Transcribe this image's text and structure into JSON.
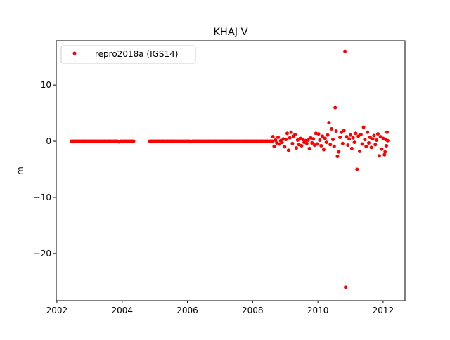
{
  "chart_data": {
    "type": "scatter",
    "title": "KHAJ V",
    "xlabel": "",
    "ylabel": "m",
    "xlim": [
      2001.98,
      2012.67
    ],
    "ylim": [
      -28.4,
      17.9
    ],
    "xticks": [
      2002,
      2004,
      2006,
      2008,
      2010,
      2012
    ],
    "xtick_labels": [
      "2002",
      "2004",
      "2006",
      "2008",
      "2010",
      "2012"
    ],
    "yticks": [
      10,
      0,
      -10,
      -20
    ],
    "ytick_labels": [
      "10",
      "0",
      "−10",
      "−20"
    ],
    "grid": false,
    "legend_placement": "upper-left",
    "series": [
      {
        "name": "repro2018a (IGS14)",
        "color": "#ff0000",
        "marker": "circle",
        "points": [
          [
            2002.45,
            0
          ],
          [
            2002.5,
            0
          ],
          [
            2002.55,
            0
          ],
          [
            2002.6,
            0
          ],
          [
            2002.65,
            0
          ],
          [
            2002.7,
            0
          ],
          [
            2002.75,
            0
          ],
          [
            2002.8,
            0
          ],
          [
            2002.85,
            0
          ],
          [
            2002.9,
            0
          ],
          [
            2002.95,
            0
          ],
          [
            2003.0,
            0
          ],
          [
            2003.05,
            0
          ],
          [
            2003.1,
            0
          ],
          [
            2003.15,
            0
          ],
          [
            2003.2,
            0
          ],
          [
            2003.25,
            0
          ],
          [
            2003.3,
            0
          ],
          [
            2003.35,
            0
          ],
          [
            2003.4,
            0
          ],
          [
            2003.45,
            0
          ],
          [
            2003.5,
            0
          ],
          [
            2003.55,
            0
          ],
          [
            2003.6,
            0
          ],
          [
            2003.65,
            0
          ],
          [
            2003.7,
            0
          ],
          [
            2003.75,
            0
          ],
          [
            2003.8,
            0
          ],
          [
            2003.85,
            0
          ],
          [
            2003.9,
            -0.1
          ],
          [
            2003.95,
            0
          ],
          [
            2004.0,
            0
          ],
          [
            2004.05,
            0
          ],
          [
            2004.1,
            0
          ],
          [
            2004.15,
            0
          ],
          [
            2004.2,
            0
          ],
          [
            2004.25,
            0
          ],
          [
            2004.3,
            0
          ],
          [
            2004.35,
            0
          ],
          [
            2004.85,
            0
          ],
          [
            2004.9,
            0
          ],
          [
            2004.95,
            0
          ],
          [
            2005.0,
            0
          ],
          [
            2005.05,
            0
          ],
          [
            2005.1,
            0
          ],
          [
            2005.15,
            0
          ],
          [
            2005.2,
            0
          ],
          [
            2005.25,
            0
          ],
          [
            2005.3,
            0
          ],
          [
            2005.35,
            0
          ],
          [
            2005.4,
            0
          ],
          [
            2005.45,
            0
          ],
          [
            2005.5,
            0
          ],
          [
            2005.55,
            0
          ],
          [
            2005.6,
            0
          ],
          [
            2005.65,
            0
          ],
          [
            2005.7,
            0
          ],
          [
            2005.75,
            0
          ],
          [
            2005.8,
            0
          ],
          [
            2005.85,
            0
          ],
          [
            2005.9,
            0
          ],
          [
            2005.95,
            0
          ],
          [
            2006.0,
            0
          ],
          [
            2006.05,
            0
          ],
          [
            2006.1,
            -0.1
          ],
          [
            2006.15,
            0
          ],
          [
            2006.2,
            0
          ],
          [
            2006.25,
            0
          ],
          [
            2006.3,
            0
          ],
          [
            2006.35,
            0
          ],
          [
            2006.4,
            0
          ],
          [
            2006.45,
            0
          ],
          [
            2006.5,
            0
          ],
          [
            2006.55,
            0
          ],
          [
            2006.6,
            0
          ],
          [
            2006.65,
            0
          ],
          [
            2006.7,
            0
          ],
          [
            2006.75,
            0
          ],
          [
            2006.8,
            0
          ],
          [
            2006.85,
            0
          ],
          [
            2006.9,
            0
          ],
          [
            2006.95,
            0
          ],
          [
            2007.0,
            0
          ],
          [
            2007.05,
            0
          ],
          [
            2007.1,
            0
          ],
          [
            2007.15,
            0
          ],
          [
            2007.2,
            0
          ],
          [
            2007.25,
            0
          ],
          [
            2007.3,
            0
          ],
          [
            2007.35,
            0
          ],
          [
            2007.4,
            0
          ],
          [
            2007.45,
            0
          ],
          [
            2007.5,
            0
          ],
          [
            2007.55,
            0
          ],
          [
            2007.6,
            0
          ],
          [
            2007.65,
            0
          ],
          [
            2007.7,
            0
          ],
          [
            2007.75,
            0
          ],
          [
            2007.8,
            0
          ],
          [
            2007.85,
            0
          ],
          [
            2007.9,
            0
          ],
          [
            2007.95,
            0
          ],
          [
            2008.0,
            0
          ],
          [
            2008.05,
            0
          ],
          [
            2008.1,
            0
          ],
          [
            2008.15,
            0
          ],
          [
            2008.2,
            0
          ],
          [
            2008.25,
            0
          ],
          [
            2008.3,
            0
          ],
          [
            2008.35,
            0
          ],
          [
            2008.4,
            0
          ],
          [
            2008.45,
            0
          ],
          [
            2008.5,
            0
          ],
          [
            2008.55,
            0
          ],
          [
            2008.6,
            0
          ],
          [
            2008.62,
            0.8
          ],
          [
            2008.66,
            -0.9
          ],
          [
            2008.7,
            0.2
          ],
          [
            2008.74,
            -0.3
          ],
          [
            2008.78,
            0.7
          ],
          [
            2008.82,
            -0.5
          ],
          [
            2008.86,
            0.1
          ],
          [
            2008.9,
            -0.2
          ],
          [
            2008.94,
            0.4
          ],
          [
            2008.98,
            -1.0
          ],
          [
            2009.02,
            0.3
          ],
          [
            2009.06,
            1.4
          ],
          [
            2009.1,
            -1.6
          ],
          [
            2009.14,
            0.6
          ],
          [
            2009.18,
            1.6
          ],
          [
            2009.22,
            -0.4
          ],
          [
            2009.26,
            0.9
          ],
          [
            2009.3,
            1.2
          ],
          [
            2009.34,
            -1.2
          ],
          [
            2009.38,
            0.2
          ],
          [
            2009.42,
            -0.6
          ],
          [
            2009.46,
            0.5
          ],
          [
            2009.5,
            -0.8
          ],
          [
            2009.54,
            0.3
          ],
          [
            2009.58,
            -0.2
          ],
          [
            2009.62,
            0.1
          ],
          [
            2009.66,
            -0.4
          ],
          [
            2009.7,
            0.2
          ],
          [
            2009.74,
            -1.3
          ],
          [
            2009.78,
            0.6
          ],
          [
            2009.82,
            -0.3
          ],
          [
            2009.86,
            0.4
          ],
          [
            2009.9,
            -0.7
          ],
          [
            2009.94,
            1.4
          ],
          [
            2009.98,
            -0.5
          ],
          [
            2010.02,
            1.3
          ],
          [
            2010.06,
            0.2
          ],
          [
            2010.1,
            -0.8
          ],
          [
            2010.14,
            0.9
          ],
          [
            2010.18,
            -1.5
          ],
          [
            2010.22,
            0.5
          ],
          [
            2010.26,
            -0.2
          ],
          [
            2010.3,
            1.1
          ],
          [
            2010.34,
            3.3
          ],
          [
            2010.38,
            -0.6
          ],
          [
            2010.42,
            2.2
          ],
          [
            2010.46,
            0.3
          ],
          [
            2010.5,
            -0.9
          ],
          [
            2010.53,
            6.0
          ],
          [
            2010.56,
            1.8
          ],
          [
            2010.6,
            -2.7
          ],
          [
            2010.64,
            -1.9
          ],
          [
            2010.68,
            0.7
          ],
          [
            2010.72,
            1.6
          ],
          [
            2010.76,
            -0.4
          ],
          [
            2010.8,
            1.9
          ],
          [
            2010.83,
            16.0
          ],
          [
            2010.85,
            -26.0
          ],
          [
            2010.88,
            0.8
          ],
          [
            2010.92,
            -0.7
          ],
          [
            2010.96,
            0.4
          ],
          [
            2011.0,
            1.1
          ],
          [
            2011.04,
            -1.3
          ],
          [
            2011.08,
            0.6
          ],
          [
            2011.12,
            -0.2
          ],
          [
            2011.16,
            1.4
          ],
          [
            2011.2,
            -5.0
          ],
          [
            2011.24,
            0.9
          ],
          [
            2011.28,
            -1.8
          ],
          [
            2011.32,
            1.2
          ],
          [
            2011.36,
            -0.5
          ],
          [
            2011.4,
            2.5
          ],
          [
            2011.44,
            0.3
          ],
          [
            2011.48,
            -0.9
          ],
          [
            2011.52,
            1.6
          ],
          [
            2011.56,
            -0.3
          ],
          [
            2011.6,
            0.7
          ],
          [
            2011.64,
            -1.1
          ],
          [
            2011.68,
            0.4
          ],
          [
            2011.72,
            1.0
          ],
          [
            2011.76,
            -0.6
          ],
          [
            2011.8,
            0.2
          ],
          [
            2011.84,
            1.3
          ],
          [
            2011.88,
            -2.6
          ],
          [
            2011.92,
            0.8
          ],
          [
            2011.96,
            -1.4
          ],
          [
            2012.0,
            0.5
          ],
          [
            2012.04,
            -2.4
          ],
          [
            2012.06,
            -1.9
          ],
          [
            2012.08,
            0.3
          ],
          [
            2012.1,
            -0.8
          ],
          [
            2012.12,
            1.6
          ],
          [
            2012.14,
            0.1
          ]
        ]
      }
    ]
  }
}
